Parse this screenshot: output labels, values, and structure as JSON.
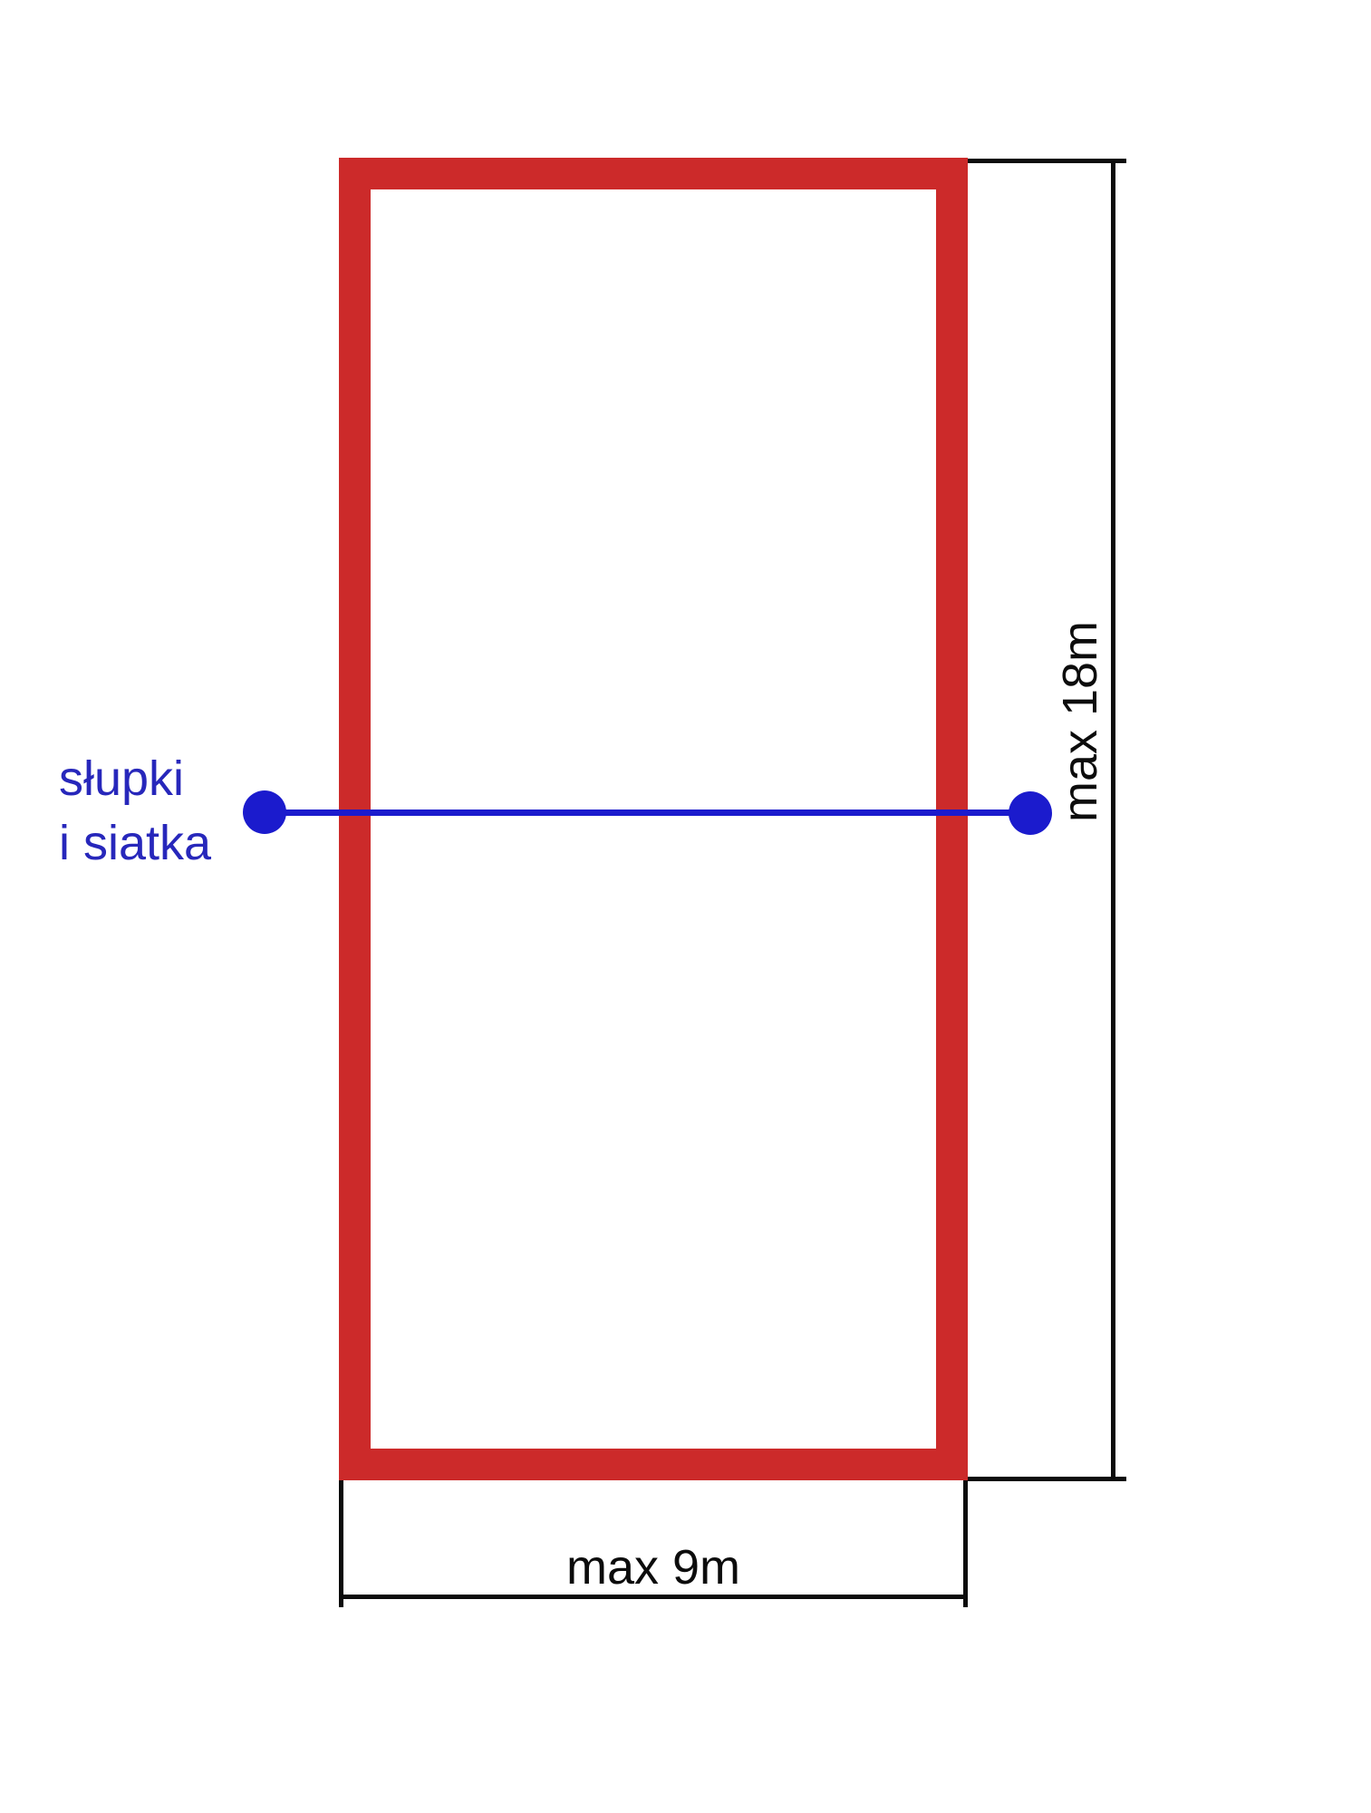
{
  "diagram": {
    "kind": "volleyball-court-dimension-diagram"
  },
  "net": {
    "label_line1": "słupki",
    "label_line2": "i siatka"
  },
  "dimensions": {
    "width_label": "max 9m",
    "height_label": "max 18m"
  },
  "colors": {
    "court_outline": "#cc2a2a",
    "net": "#1b1bcd",
    "net_label_text": "#2727bb",
    "dimension_lines": "#0c0c0c",
    "background": "#ffffff"
  }
}
